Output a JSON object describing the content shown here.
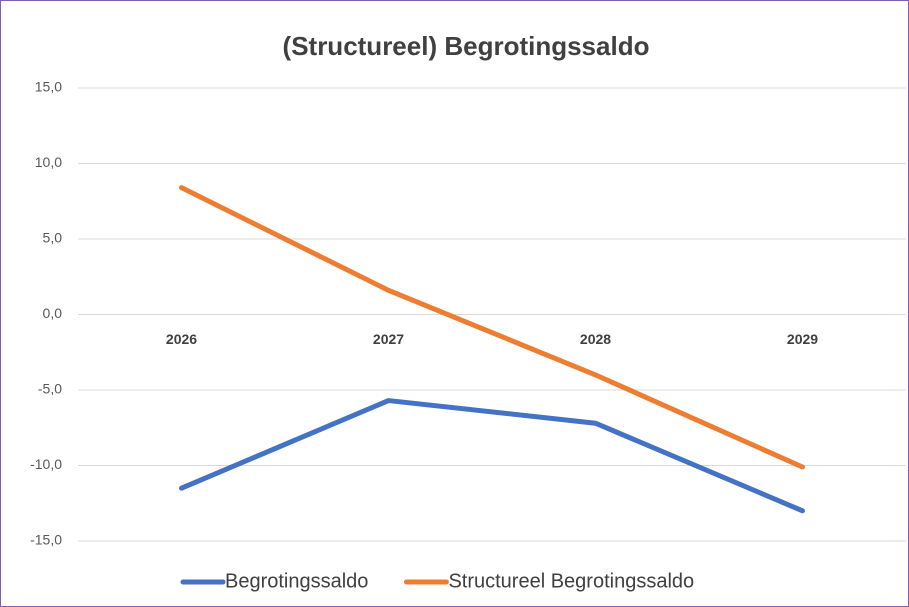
{
  "chart_data": {
    "type": "line",
    "title": "(Structureel) Begrotingssaldo",
    "categories": [
      "2026",
      "2027",
      "2028",
      "2029"
    ],
    "series": [
      {
        "name": "Begrotingssaldo",
        "color": "#4472c4",
        "values": [
          -11.5,
          -5.7,
          -7.2,
          -13.0
        ]
      },
      {
        "name": "Structureel Begrotingssaldo",
        "color": "#ed7d31",
        "values": [
          8.4,
          1.6,
          -4.0,
          -10.1
        ]
      }
    ],
    "ylim": [
      -15,
      15
    ],
    "yticks": [
      {
        "value": -15,
        "label": "-15,0"
      },
      {
        "value": -10,
        "label": "-10,0"
      },
      {
        "value": -5,
        "label": "-5,0"
      },
      {
        "value": 0,
        "label": "0,0"
      },
      {
        "value": 5,
        "label": "5,0"
      },
      {
        "value": 10,
        "label": "10,0"
      },
      {
        "value": 15,
        "label": "15,0"
      }
    ],
    "grid": true,
    "legend": "bottom"
  }
}
